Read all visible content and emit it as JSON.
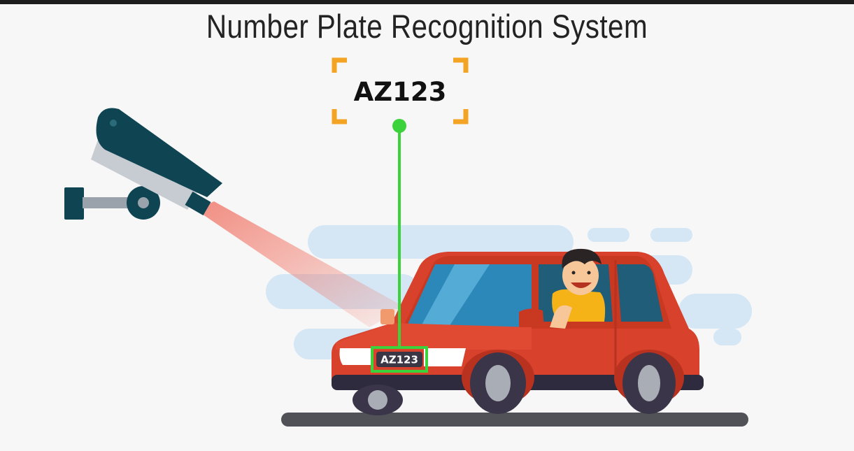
{
  "title": "Number Plate Recognition System",
  "recognized_plate": "AZ123",
  "car_plate": "AZ123",
  "colors": {
    "background": "#f7f7f7",
    "camera": "#0f4452",
    "car_body": "#d8412b",
    "detection_line": "#3bd23b",
    "corner_brackets": "#f3a424",
    "camera_beam": "#f06a5a",
    "road": "#505257",
    "clouds": "#d5e6f5"
  },
  "icons": [
    "cctv-camera-icon",
    "car-icon",
    "driver-icon",
    "detection-box-icon"
  ]
}
